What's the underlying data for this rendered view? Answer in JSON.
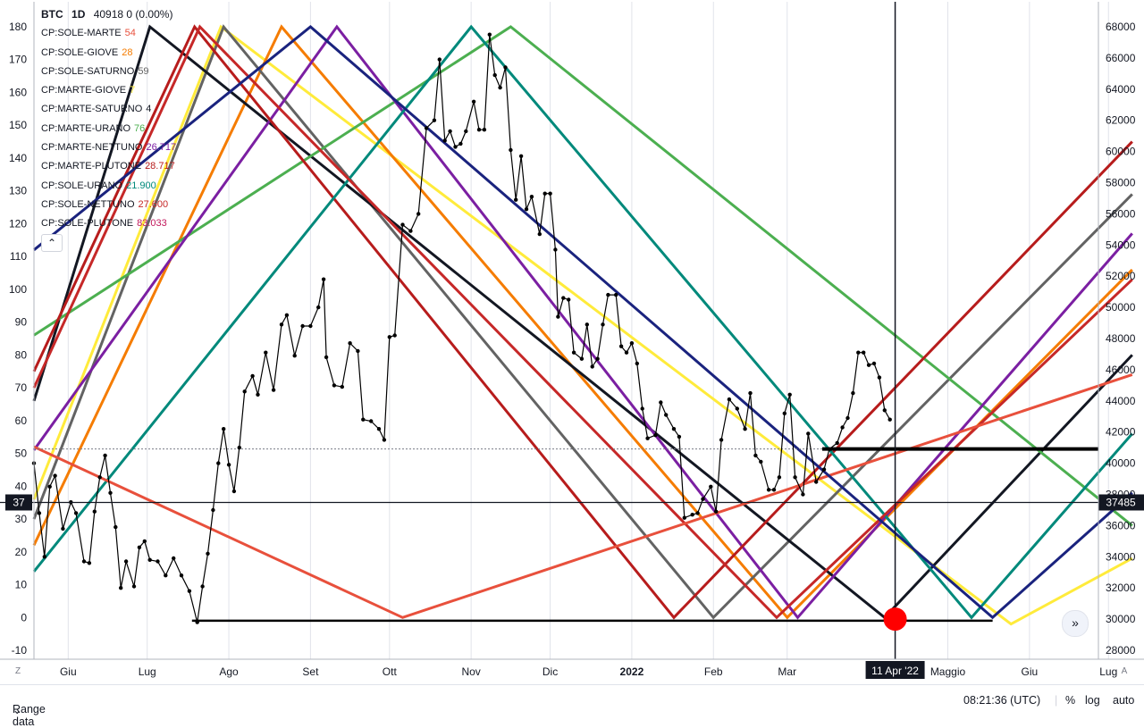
{
  "header": {
    "symbol": "BTC",
    "interval": "1D",
    "price": "40918",
    "change": "0 (0.00%)"
  },
  "legend": [
    {
      "name": "CP:SOLE-MARTE",
      "value": "54",
      "color": "#e8503c"
    },
    {
      "name": "CP:SOLE-GIOVE",
      "value": "28",
      "color": "#f57c00"
    },
    {
      "name": "CP:SOLE-SATURNO",
      "value": "59",
      "color": "#636363"
    },
    {
      "name": "CP:MARTE-GIOVE",
      "value": "7",
      "color": "#ffeb3b"
    },
    {
      "name": "CP:MARTE-SATURNO",
      "value": "4",
      "color": "#131722"
    },
    {
      "name": "CP:MARTE-URANO",
      "value": "76",
      "color": "#4caf50"
    },
    {
      "name": "CP:MARTE-NETTUNO",
      "value": "26.717",
      "color": "#7b1fa2"
    },
    {
      "name": "CP:MARTE-PLUTONE",
      "value": "28.717",
      "color": "#b71c1c"
    },
    {
      "name": "CP:SOLE-URANO",
      "value": "21.900",
      "color": "#00897b"
    },
    {
      "name": "CP:SOLE-NETTUNO",
      "value": "27.600",
      "color": "#c62828"
    },
    {
      "name": "CP:SOLE-PLUTONE",
      "value": "83.033",
      "color": "#c2185b"
    }
  ],
  "collapse_icon": "chevron-up-icon",
  "bottom": {
    "range_label": "Range data",
    "time": "08:21:36 (UTC)",
    "percent": "%",
    "log": "log",
    "auto": "auto"
  },
  "corner_left": "Z",
  "corner_right": "A",
  "colors": {
    "crosshair": "#131722",
    "price_label_bg": "#131722",
    "marker": "#ff0000",
    "level_line": "#000000"
  },
  "chart_data": {
    "type": "line",
    "symbol": "BTC",
    "interval": "1D",
    "title": "BTC 1D",
    "xlim": [
      "2021-05-19",
      "2022-07-10"
    ],
    "x_ticks": [
      {
        "label": "Giu",
        "date": "2021-06-01"
      },
      {
        "label": "Lug",
        "date": "2021-07-01"
      },
      {
        "label": "Ago",
        "date": "2021-08-01"
      },
      {
        "label": "Set",
        "date": "2021-09-01"
      },
      {
        "label": "Ott",
        "date": "2021-10-01"
      },
      {
        "label": "Nov",
        "date": "2021-11-01"
      },
      {
        "label": "Dic",
        "date": "2021-12-01"
      },
      {
        "label": "2022",
        "date": "2022-01-01"
      },
      {
        "label": "Feb",
        "date": "2022-02-01"
      },
      {
        "label": "Mar",
        "date": "2022-03-01"
      },
      {
        "label": "Maggio",
        "date": "2022-05-01"
      },
      {
        "label": "Giu",
        "date": "2022-06-01"
      },
      {
        "label": "Lug",
        "date": "2022-07-01"
      }
    ],
    "left_axis": {
      "min": -10,
      "max": 180,
      "ticks": [
        -10,
        0,
        10,
        20,
        30,
        40,
        50,
        60,
        70,
        80,
        90,
        100,
        110,
        120,
        130,
        140,
        150,
        160,
        170,
        180
      ]
    },
    "right_axis": {
      "min": 28000,
      "max": 68000,
      "ticks": [
        28000,
        30000,
        32000,
        34000,
        36000,
        38000,
        40000,
        42000,
        44000,
        46000,
        48000,
        50000,
        52000,
        54000,
        56000,
        58000,
        60000,
        62000,
        64000,
        66000,
        68000
      ]
    },
    "price_series": {
      "name": "BTC",
      "points": [
        [
          "2021-05-19",
          40000
        ],
        [
          "2021-05-21",
          36800
        ],
        [
          "2021-05-23",
          34000
        ],
        [
          "2021-05-25",
          38500
        ],
        [
          "2021-05-27",
          39200
        ],
        [
          "2021-05-30",
          35800
        ],
        [
          "2021-06-02",
          37500
        ],
        [
          "2021-06-04",
          36800
        ],
        [
          "2021-06-07",
          33700
        ],
        [
          "2021-06-09",
          33600
        ],
        [
          "2021-06-11",
          36900
        ],
        [
          "2021-06-13",
          39100
        ],
        [
          "2021-06-15",
          40500
        ],
        [
          "2021-06-17",
          38100
        ],
        [
          "2021-06-19",
          35900
        ],
        [
          "2021-06-21",
          32000
        ],
        [
          "2021-06-23",
          33700
        ],
        [
          "2021-06-26",
          32100
        ],
        [
          "2021-06-28",
          34600
        ],
        [
          "2021-06-30",
          35000
        ],
        [
          "2021-07-02",
          33800
        ],
        [
          "2021-07-05",
          33700
        ],
        [
          "2021-07-08",
          32800
        ],
        [
          "2021-07-11",
          33900
        ],
        [
          "2021-07-14",
          32800
        ],
        [
          "2021-07-17",
          31800
        ],
        [
          "2021-07-20",
          29800
        ],
        [
          "2021-07-22",
          32100
        ],
        [
          "2021-07-24",
          34200
        ],
        [
          "2021-07-26",
          37000
        ],
        [
          "2021-07-28",
          40000
        ],
        [
          "2021-07-30",
          42200
        ],
        [
          "2021-08-01",
          39900
        ],
        [
          "2021-08-03",
          38200
        ],
        [
          "2021-08-05",
          41000
        ],
        [
          "2021-08-07",
          44600
        ],
        [
          "2021-08-10",
          45600
        ],
        [
          "2021-08-12",
          44400
        ],
        [
          "2021-08-15",
          47100
        ],
        [
          "2021-08-18",
          44700
        ],
        [
          "2021-08-21",
          48900
        ],
        [
          "2021-08-23",
          49500
        ],
        [
          "2021-08-26",
          46900
        ],
        [
          "2021-08-29",
          48800
        ],
        [
          "2021-09-01",
          48800
        ],
        [
          "2021-09-04",
          50000
        ],
        [
          "2021-09-06",
          51800
        ],
        [
          "2021-09-07",
          46800
        ],
        [
          "2021-09-10",
          45000
        ],
        [
          "2021-09-13",
          44900
        ],
        [
          "2021-09-16",
          47700
        ],
        [
          "2021-09-19",
          47200
        ],
        [
          "2021-09-21",
          42800
        ],
        [
          "2021-09-24",
          42700
        ],
        [
          "2021-09-27",
          42200
        ],
        [
          "2021-09-29",
          41500
        ],
        [
          "2021-10-01",
          48100
        ],
        [
          "2021-10-03",
          48200
        ],
        [
          "2021-10-06",
          55300
        ],
        [
          "2021-10-09",
          54900
        ],
        [
          "2021-10-12",
          56000
        ],
        [
          "2021-10-15",
          61500
        ],
        [
          "2021-10-18",
          62000
        ],
        [
          "2021-10-20",
          65900
        ],
        [
          "2021-10-22",
          60700
        ],
        [
          "2021-10-24",
          61300
        ],
        [
          "2021-10-26",
          60300
        ],
        [
          "2021-10-28",
          60500
        ],
        [
          "2021-10-30",
          61300
        ],
        [
          "2021-11-02",
          63200
        ],
        [
          "2021-11-04",
          61400
        ],
        [
          "2021-11-06",
          61400
        ],
        [
          "2021-11-08",
          67500
        ],
        [
          "2021-11-10",
          64900
        ],
        [
          "2021-11-12",
          64100
        ],
        [
          "2021-11-14",
          65400
        ],
        [
          "2021-11-16",
          60100
        ],
        [
          "2021-11-18",
          56900
        ],
        [
          "2021-11-20",
          59700
        ],
        [
          "2021-11-22",
          56300
        ],
        [
          "2021-11-24",
          57100
        ],
        [
          "2021-11-27",
          54700
        ],
        [
          "2021-11-29",
          57300
        ],
        [
          "2021-12-01",
          57300
        ],
        [
          "2021-12-03",
          53700
        ],
        [
          "2021-12-04",
          49400
        ],
        [
          "2021-12-06",
          50600
        ],
        [
          "2021-12-08",
          50500
        ],
        [
          "2021-12-10",
          47100
        ],
        [
          "2021-12-13",
          46700
        ],
        [
          "2021-12-15",
          48900
        ],
        [
          "2021-12-17",
          46200
        ],
        [
          "2021-12-19",
          46700
        ],
        [
          "2021-12-21",
          48900
        ],
        [
          "2021-12-23",
          50800
        ],
        [
          "2021-12-26",
          50800
        ],
        [
          "2021-12-28",
          47500
        ],
        [
          "2021-12-30",
          47100
        ],
        [
          "2022-01-01",
          47700
        ],
        [
          "2022-01-03",
          46400
        ],
        [
          "2022-01-05",
          43500
        ],
        [
          "2022-01-07",
          41600
        ],
        [
          "2022-01-10",
          41800
        ],
        [
          "2022-01-12",
          43900
        ],
        [
          "2022-01-14",
          43100
        ],
        [
          "2022-01-17",
          42200
        ],
        [
          "2022-01-19",
          41700
        ],
        [
          "2022-01-21",
          36500
        ],
        [
          "2022-01-24",
          36700
        ],
        [
          "2022-01-26",
          36800
        ],
        [
          "2022-01-28",
          37700
        ],
        [
          "2022-01-31",
          38500
        ],
        [
          "2022-02-02",
          36900
        ],
        [
          "2022-02-04",
          41500
        ],
        [
          "2022-02-07",
          44100
        ],
        [
          "2022-02-10",
          43500
        ],
        [
          "2022-02-13",
          42200
        ],
        [
          "2022-02-15",
          44500
        ],
        [
          "2022-02-17",
          40500
        ],
        [
          "2022-02-19",
          40100
        ],
        [
          "2022-02-22",
          38300
        ],
        [
          "2022-02-24",
          38300
        ],
        [
          "2022-02-26",
          39100
        ],
        [
          "2022-02-28",
          43200
        ],
        [
          "2022-03-02",
          44400
        ],
        [
          "2022-03-04",
          39100
        ],
        [
          "2022-03-07",
          38000
        ],
        [
          "2022-03-09",
          41900
        ],
        [
          "2022-03-12",
          38800
        ],
        [
          "2022-03-15",
          39600
        ],
        [
          "2022-03-17",
          40900
        ],
        [
          "2022-03-20",
          41300
        ],
        [
          "2022-03-22",
          42300
        ],
        [
          "2022-03-24",
          42900
        ],
        [
          "2022-03-26",
          44500
        ],
        [
          "2022-03-28",
          47100
        ],
        [
          "2022-03-30",
          47100
        ],
        [
          "2022-04-01",
          46300
        ],
        [
          "2022-04-03",
          46400
        ],
        [
          "2022-04-05",
          45500
        ],
        [
          "2022-04-07",
          43400
        ],
        [
          "2022-04-09",
          42800
        ]
      ]
    },
    "current_price": 40918,
    "crosshair": {
      "date_label": "11 Apr '22",
      "price_label": "37485",
      "left_label": "37"
    },
    "horizontal_levels": [
      40918,
      29900
    ],
    "marker": {
      "date": "2022-04-11",
      "price": 30000
    },
    "cycle_lines": [
      {
        "name": "CP:MARTE-GIOVE",
        "color": "#ffeb3b",
        "points": [
          [
            "2021-05-19",
            36
          ],
          [
            "2021-07-29",
            180
          ],
          [
            "2022-05-25",
            -2
          ],
          [
            "2022-07-10",
            18
          ]
        ]
      },
      {
        "name": "CP:SOLE-GIOVE",
        "color": "#f57c00",
        "points": [
          [
            "2021-05-19",
            22
          ],
          [
            "2021-08-21",
            180
          ],
          [
            "2022-03-01",
            0
          ],
          [
            "2022-07-10",
            106
          ]
        ]
      },
      {
        "name": "CP:SOLE-SATURNO",
        "color": "#636363",
        "points": [
          [
            "2021-05-19",
            30
          ],
          [
            "2021-07-30",
            180
          ],
          [
            "2022-02-01",
            0
          ],
          [
            "2022-07-10",
            129
          ]
        ]
      },
      {
        "name": "CP:MARTE-SATURNO",
        "color": "#131722",
        "points": [
          [
            "2021-05-19",
            66
          ],
          [
            "2021-07-02",
            180
          ],
          [
            "2022-04-07",
            0
          ],
          [
            "2022-07-10",
            80
          ]
        ]
      },
      {
        "name": "CP:MARTE-URANO",
        "color": "#4caf50",
        "points": [
          [
            "2021-05-19",
            86
          ],
          [
            "2021-11-16",
            180
          ],
          [
            "2022-07-10",
            28
          ]
        ]
      },
      {
        "name": "CP:MARTE-NETTUNO",
        "color": "#7b1fa2",
        "points": [
          [
            "2021-05-19",
            51
          ],
          [
            "2021-09-11",
            180
          ],
          [
            "2022-03-05",
            0
          ],
          [
            "2022-07-10",
            117
          ]
        ]
      },
      {
        "name": "CP:MARTE-PLUTONE",
        "color": "#b71c1c",
        "points": [
          [
            "2021-05-19",
            75
          ],
          [
            "2021-07-19",
            180
          ],
          [
            "2022-01-17",
            0
          ],
          [
            "2022-07-10",
            145
          ]
        ]
      },
      {
        "name": "CP:SOLE-URANO",
        "color": "#00897b",
        "points": [
          [
            "2021-05-19",
            14
          ],
          [
            "2021-11-01",
            180
          ],
          [
            "2022-05-10",
            0
          ],
          [
            "2022-07-10",
            56
          ]
        ]
      },
      {
        "name": "CP:SOLE-NETTUNO",
        "color": "#c62828",
        "points": [
          [
            "2021-05-19",
            70
          ],
          [
            "2021-07-21",
            180
          ],
          [
            "2022-02-25",
            0
          ],
          [
            "2022-07-10",
            103
          ]
        ]
      },
      {
        "name": "CP:SOLE-PLUTONE",
        "color": "#e8503c",
        "points": [
          [
            "2021-05-19",
            52
          ],
          [
            "2021-10-06",
            0
          ],
          [
            "2022-07-10",
            74
          ]
        ]
      },
      {
        "name": "",
        "color": "#1a237e",
        "points": [
          [
            "2021-05-19",
            112
          ],
          [
            "2021-09-01",
            180
          ],
          [
            "2022-05-18",
            0
          ],
          [
            "2022-07-10",
            38
          ]
        ]
      }
    ]
  }
}
